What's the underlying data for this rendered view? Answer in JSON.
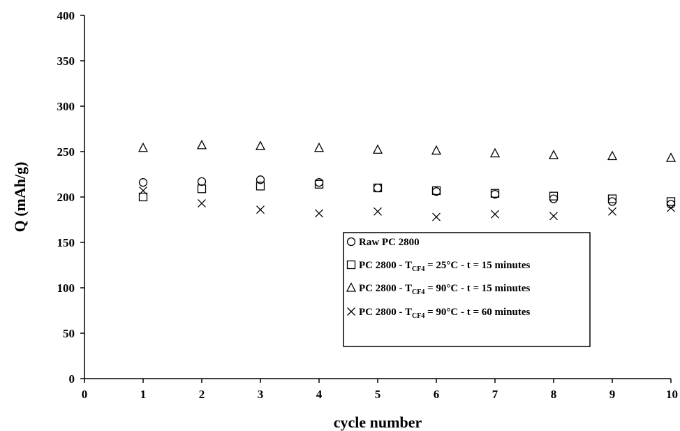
{
  "chart_data": {
    "type": "scatter",
    "title": "",
    "xlabel": "cycle number",
    "ylabel": "Q (mAh/g)",
    "xlim": [
      0,
      10
    ],
    "ylim": [
      0,
      400
    ],
    "xticks": [
      0,
      1,
      2,
      3,
      4,
      5,
      6,
      7,
      8,
      9,
      10
    ],
    "yticks": [
      0,
      50,
      100,
      150,
      200,
      250,
      300,
      350,
      400
    ],
    "grid": false,
    "legend_position": "lower-right",
    "x": [
      1,
      2,
      3,
      4,
      5,
      6,
      7,
      8,
      9,
      10
    ],
    "series": [
      {
        "marker": "circle",
        "legend_main": "Raw PC 2800",
        "legend_sub": "",
        "legend_tail": "",
        "values": [
          216,
          217,
          219,
          216,
          210,
          206,
          203,
          198,
          195,
          192
        ]
      },
      {
        "marker": "square",
        "legend_main": "PC 2800 - T",
        "legend_sub": "CF4",
        "legend_tail": " = 25°C - t = 15 minutes",
        "values": [
          200,
          209,
          212,
          214,
          210,
          207,
          204,
          201,
          198,
          195
        ]
      },
      {
        "marker": "triangle",
        "legend_main": "PC 2800 - T",
        "legend_sub": "CF4",
        "legend_tail": " = 90°C - t = 15 minutes",
        "values": [
          254,
          257,
          256,
          254,
          252,
          251,
          248,
          246,
          245,
          243
        ]
      },
      {
        "marker": "cross",
        "legend_main": "PC 2800 - T",
        "legend_sub": "CF4",
        "legend_tail": " = 90°C - t = 60 minutes",
        "values": [
          207,
          193,
          186,
          182,
          184,
          178,
          181,
          179,
          184,
          188
        ]
      }
    ]
  }
}
